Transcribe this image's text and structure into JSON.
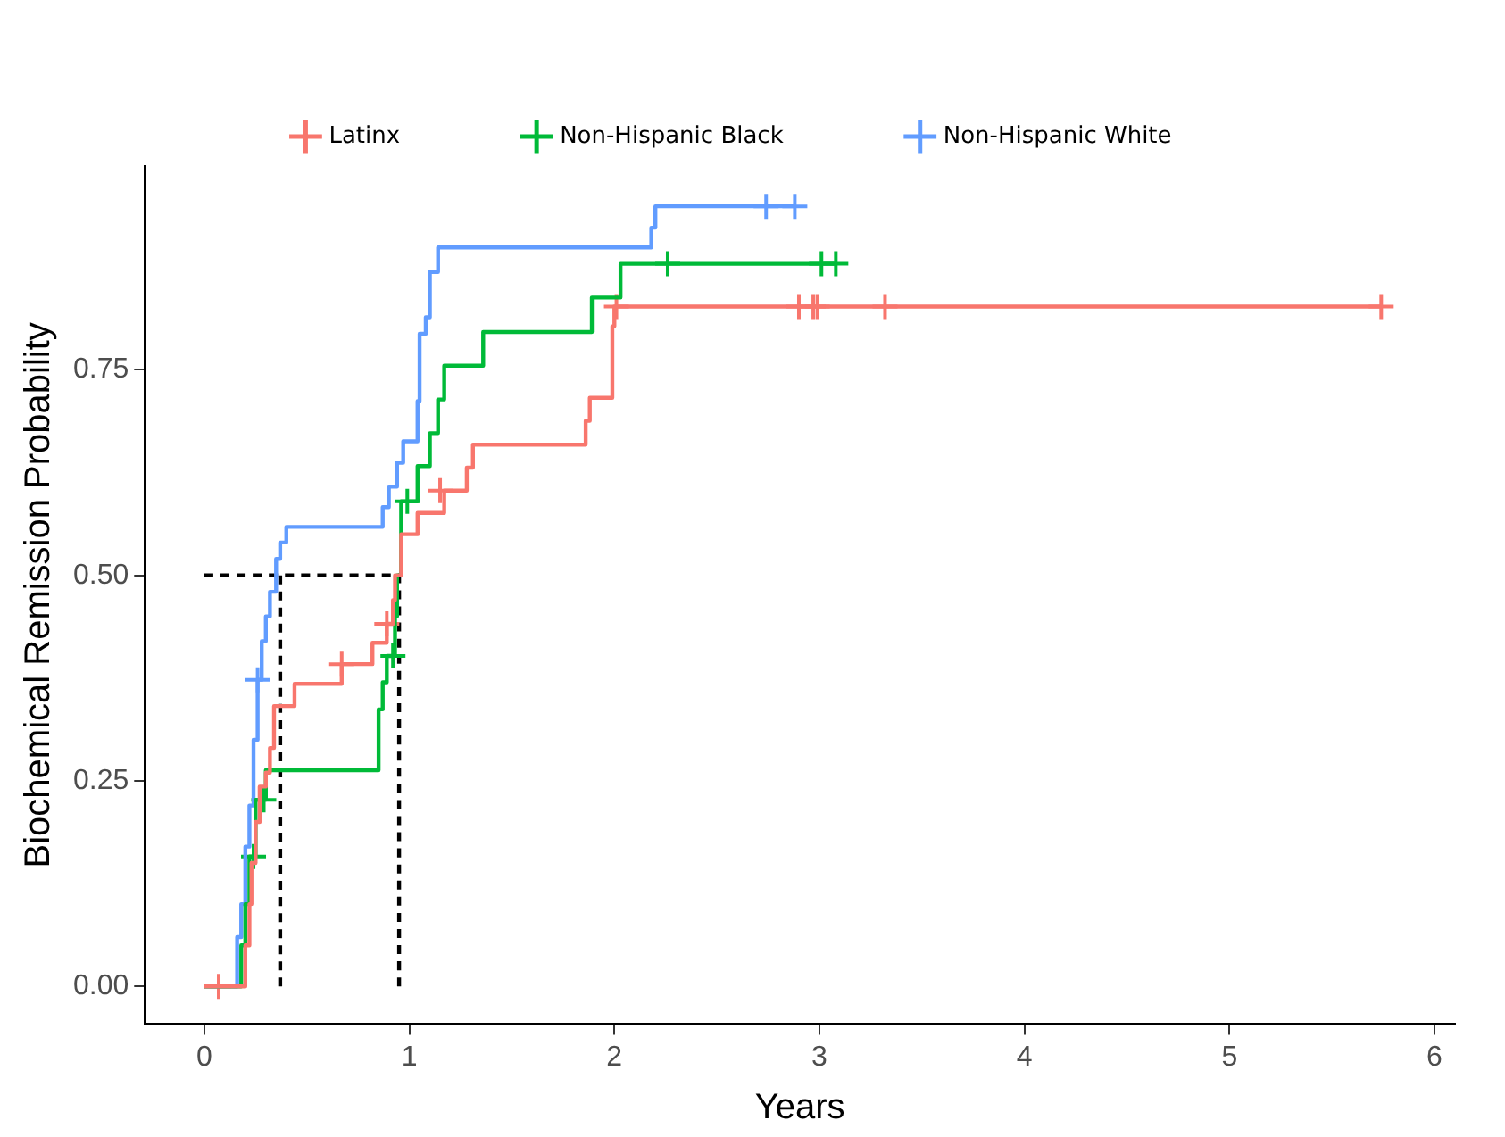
{
  "chart_data": {
    "type": "step",
    "xlabel": "Years",
    "ylabel": "Biochemical Remission Probability",
    "xlim": [
      -0.29,
      6.1
    ],
    "ylim": [
      -0.046,
      0.998
    ],
    "xticks": [
      0,
      1,
      2,
      3,
      4,
      5,
      6
    ],
    "yticks": [
      {
        "value": 0,
        "label": "0.00"
      },
      {
        "value": 0.25,
        "label": "0.25"
      },
      {
        "value": 0.5,
        "label": "0.50"
      },
      {
        "value": 0.75,
        "label": "0.75"
      }
    ],
    "grid": false,
    "legend": "top",
    "marker": "none",
    "series": [
      {
        "name": "Latinx",
        "color": "#f8766d",
        "x": [
          0,
          0.2,
          0.22,
          0.23,
          0.25,
          0.27,
          0.3,
          0.32,
          0.34,
          0.44,
          0.67,
          0.82,
          0.89,
          0.92,
          0.93,
          0.96,
          1.04,
          1.17,
          1.28,
          1.31,
          1.86,
          1.88,
          1.99,
          2.0,
          5.74
        ],
        "values": [
          0,
          0.05,
          0.1,
          0.15,
          0.2,
          0.243,
          0.26,
          0.29,
          0.341,
          0.368,
          0.392,
          0.418,
          0.441,
          0.47,
          0.5,
          0.55,
          0.576,
          0.603,
          0.631,
          0.659,
          0.688,
          0.716,
          0.803,
          0.827,
          0.827
        ]
      },
      {
        "name": "Non-Hispanic Black",
        "color": "#00ba38",
        "x": [
          0,
          0.18,
          0.2,
          0.22,
          0.25,
          0.3,
          0.85,
          0.87,
          0.89,
          0.93,
          0.94,
          0.96,
          1.04,
          1.1,
          1.14,
          1.17,
          1.36,
          1.89,
          2.03,
          3.08
        ],
        "values": [
          0,
          0.05,
          0.1,
          0.158,
          0.227,
          0.263,
          0.337,
          0.37,
          0.402,
          0.45,
          0.5,
          0.59,
          0.633,
          0.673,
          0.714,
          0.755,
          0.796,
          0.838,
          0.879,
          0.879
        ]
      },
      {
        "name": "Non-Hispanic White",
        "color": "#619cff",
        "x": [
          0,
          0.16,
          0.18,
          0.2,
          0.22,
          0.24,
          0.26,
          0.28,
          0.3,
          0.32,
          0.35,
          0.37,
          0.4,
          0.87,
          0.9,
          0.94,
          0.97,
          1.04,
          1.05,
          1.08,
          1.1,
          1.14,
          2.18,
          2.2,
          2.88
        ],
        "values": [
          0,
          0.06,
          0.1,
          0.17,
          0.22,
          0.3,
          0.373,
          0.42,
          0.45,
          0.48,
          0.52,
          0.54,
          0.559,
          0.583,
          0.608,
          0.637,
          0.663,
          0.712,
          0.794,
          0.814,
          0.869,
          0.899,
          0.923,
          0.949,
          0.949
        ]
      },
      {
        "type": "scatter",
        "marker": "cross",
        "color": "#f8766d",
        "x": [
          0.07,
          0.67,
          0.89,
          1.15,
          2.01,
          2.9,
          2.97,
          2.99,
          3.32,
          5.74
        ],
        "values": [
          0,
          0.392,
          0.441,
          0.603,
          0.827,
          0.827,
          0.827,
          0.827,
          0.827,
          0.827
        ]
      },
      {
        "type": "scatter",
        "marker": "cross",
        "color": "#00ba38",
        "x": [
          0.24,
          0.29,
          0.92,
          0.99,
          2.26,
          3.01,
          3.08
        ],
        "values": [
          0.158,
          0.227,
          0.402,
          0.59,
          0.879,
          0.879,
          0.879
        ]
      },
      {
        "type": "scatter",
        "marker": "cross",
        "color": "#619cff",
        "x": [
          0.26,
          2.74,
          2.88
        ],
        "values": [
          0.373,
          0.949,
          0.949
        ]
      },
      {
        "type": "line",
        "line_style": "dashed",
        "color": "#000000",
        "x": [
          0,
          0.95,
          0.95
        ],
        "values": [
          0.5,
          0.5,
          0
        ]
      },
      {
        "type": "line",
        "line_style": "dashed",
        "color": "#000000",
        "x": [
          0.37,
          0.37
        ],
        "values": [
          0.5,
          0
        ]
      }
    ]
  }
}
